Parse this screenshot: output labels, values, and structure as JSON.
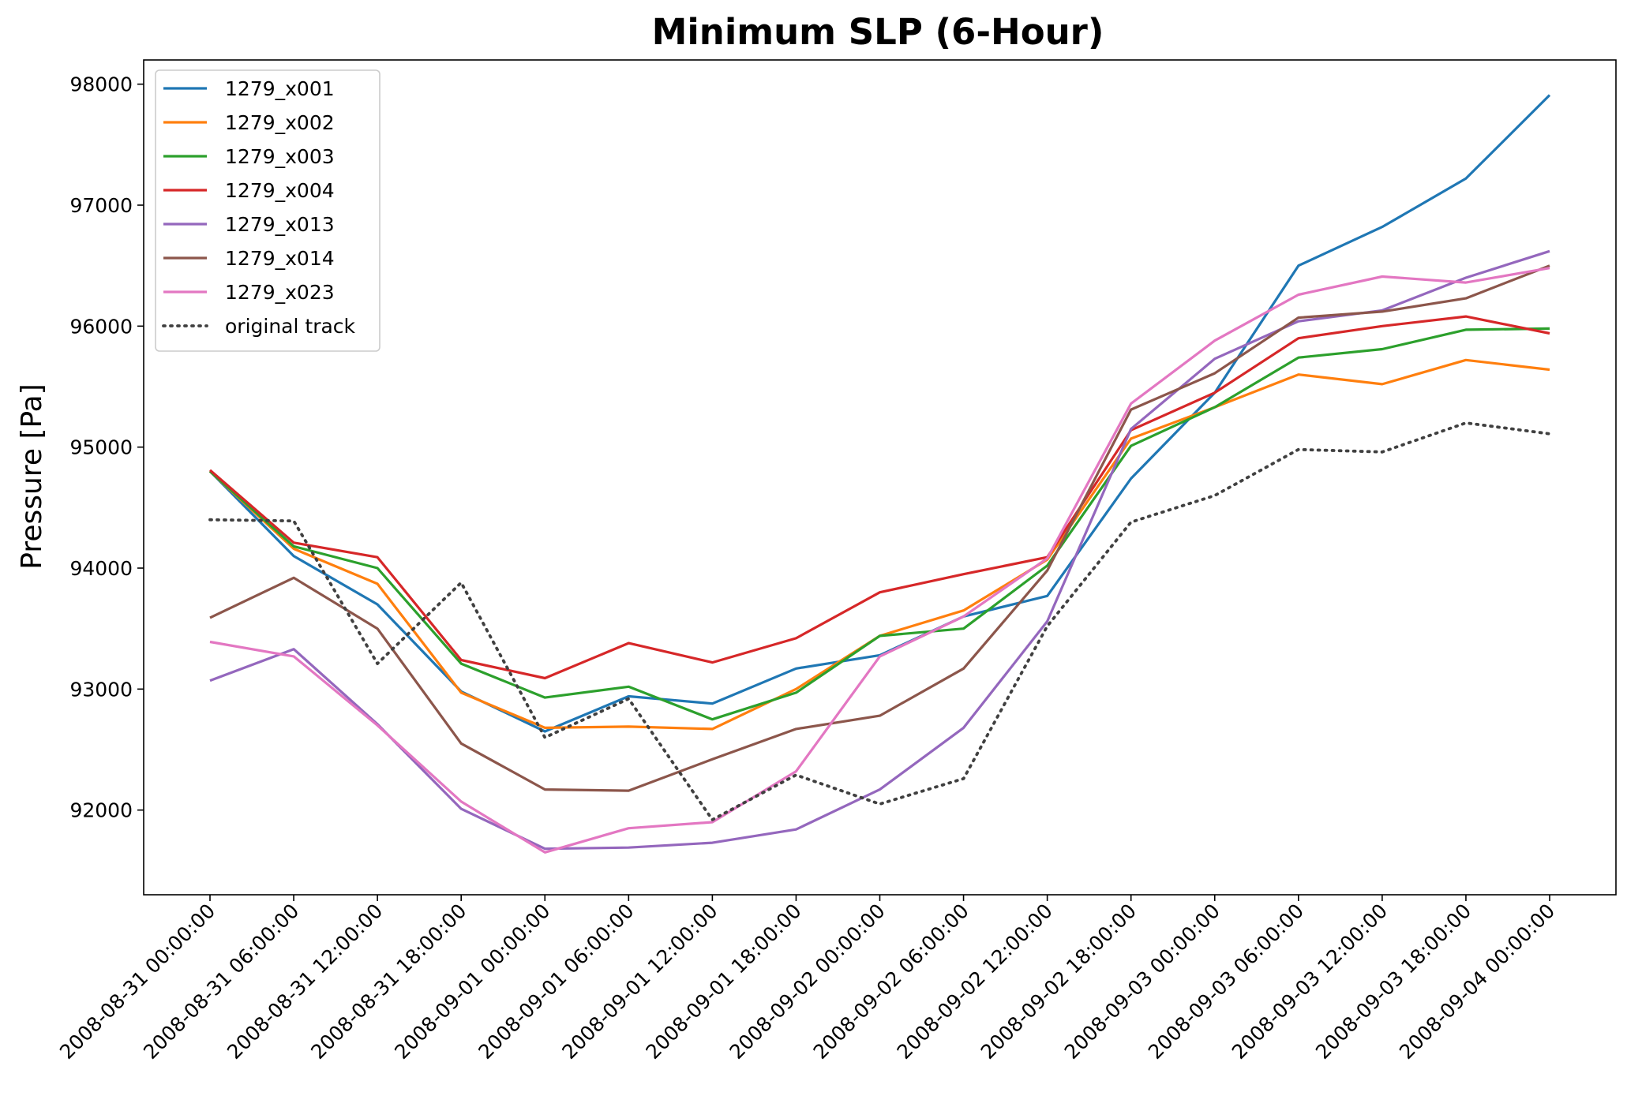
{
  "chart_data": {
    "type": "line",
    "title": "Minimum SLP (6-Hour)",
    "xlabel": "",
    "ylabel": "Pressure [Pa]",
    "ylim": [
      91300,
      98200
    ],
    "yticks": [
      92000,
      93000,
      94000,
      95000,
      96000,
      97000,
      98000
    ],
    "grid": false,
    "legend_position": "top-left",
    "categories": [
      "2008-08-31 00:00:00",
      "2008-08-31 06:00:00",
      "2008-08-31 12:00:00",
      "2008-08-31 18:00:00",
      "2008-09-01 00:00:00",
      "2008-09-01 06:00:00",
      "2008-09-01 12:00:00",
      "2008-09-01 18:00:00",
      "2008-09-02 00:00:00",
      "2008-09-02 06:00:00",
      "2008-09-02 12:00:00",
      "2008-09-02 18:00:00",
      "2008-09-03 00:00:00",
      "2008-09-03 06:00:00",
      "2008-09-03 12:00:00",
      "2008-09-03 18:00:00",
      "2008-09-04 00:00:00"
    ],
    "series": [
      {
        "name": "1279_x001",
        "color": "#1f77b4",
        "style": "solid",
        "values": [
          94800,
          94100,
          93700,
          92980,
          92650,
          92940,
          92880,
          93170,
          93280,
          93600,
          93770,
          94740,
          95450,
          96500,
          96820,
          97220,
          97910
        ]
      },
      {
        "name": "1279_x002",
        "color": "#ff7f0e",
        "style": "solid",
        "values": [
          94800,
          94160,
          93870,
          92970,
          92680,
          92690,
          92670,
          93000,
          93440,
          93650,
          94070,
          95070,
          95330,
          95600,
          95520,
          95720,
          95640
        ]
      },
      {
        "name": "1279_x003",
        "color": "#2ca02c",
        "style": "solid",
        "values": [
          94800,
          94180,
          94000,
          93210,
          92930,
          93020,
          92750,
          92970,
          93440,
          93500,
          94020,
          95010,
          95330,
          95740,
          95810,
          95970,
          95980
        ]
      },
      {
        "name": "1279_x004",
        "color": "#d62728",
        "style": "solid",
        "values": [
          94810,
          94210,
          94090,
          93240,
          93090,
          93380,
          93220,
          93420,
          93800,
          93950,
          94090,
          95140,
          95450,
          95900,
          96000,
          96080,
          95940
        ]
      },
      {
        "name": "1279_x013",
        "color": "#9467bd",
        "style": "solid",
        "values": [
          93070,
          93330,
          92710,
          92010,
          91680,
          91690,
          91730,
          91840,
          92170,
          92680,
          93560,
          95150,
          95730,
          96040,
          96130,
          96400,
          96620
        ]
      },
      {
        "name": "1279_x014",
        "color": "#8c564b",
        "style": "solid",
        "values": [
          93590,
          93920,
          93500,
          92550,
          92170,
          92160,
          92420,
          92670,
          92780,
          93170,
          93980,
          95310,
          95610,
          96070,
          96120,
          96230,
          96500
        ]
      },
      {
        "name": "1279_x023",
        "color": "#e377c2",
        "style": "solid",
        "values": [
          93390,
          93270,
          92700,
          92070,
          91650,
          91850,
          91900,
          92320,
          93270,
          93600,
          94080,
          95360,
          95880,
          96260,
          96410,
          96360,
          96480
        ]
      },
      {
        "name": "original track",
        "color": "#404040",
        "style": "dotted",
        "values": [
          94400,
          94390,
          93210,
          93880,
          92600,
          92920,
          91920,
          92290,
          92050,
          92260,
          93520,
          94380,
          94600,
          94980,
          94960,
          95200,
          95110
        ]
      }
    ]
  }
}
